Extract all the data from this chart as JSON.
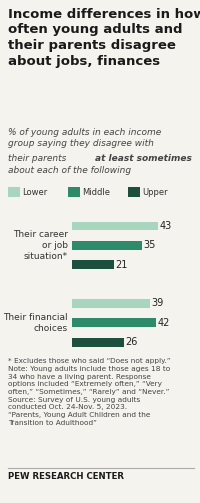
{
  "title": "Income differences in how\noften young adults and\ntheir parents disagree\nabout jobs, finances",
  "subtitle_line1": "% of young adults in each income",
  "subtitle_line2": "group saying they disagree with",
  "subtitle_line3": "their parents ",
  "subtitle_bold": "at least sometimes",
  "subtitle_line4": "about each of the following",
  "categories": [
    "Their career\nor job\nsituation*",
    "Their financial\nchoices"
  ],
  "groups": [
    "Lower",
    "Middle",
    "Upper"
  ],
  "colors": [
    "#a8d5be",
    "#2d8b6b",
    "#1c4f3e"
  ],
  "values": [
    [
      43,
      35,
      21
    ],
    [
      39,
      42,
      26
    ]
  ],
  "footnote_lines": [
    "* Excludes those who said “Does not apply.”",
    "Note: Young adults include those ages 18 to",
    "34 who have a living parent. Response",
    "options included “Extremely often,” “Very",
    "often,” “Sometimes,” “Rarely” and “Never.”",
    "Source: Survey of U.S. young adults",
    "conducted Oct. 24-Nov. 5, 2023.",
    "“Parents, Young Adult Children and the",
    "Transition to Adulthood”"
  ],
  "source_label": "PEW RESEARCH CENTER",
  "background_color": "#f5f3ee"
}
